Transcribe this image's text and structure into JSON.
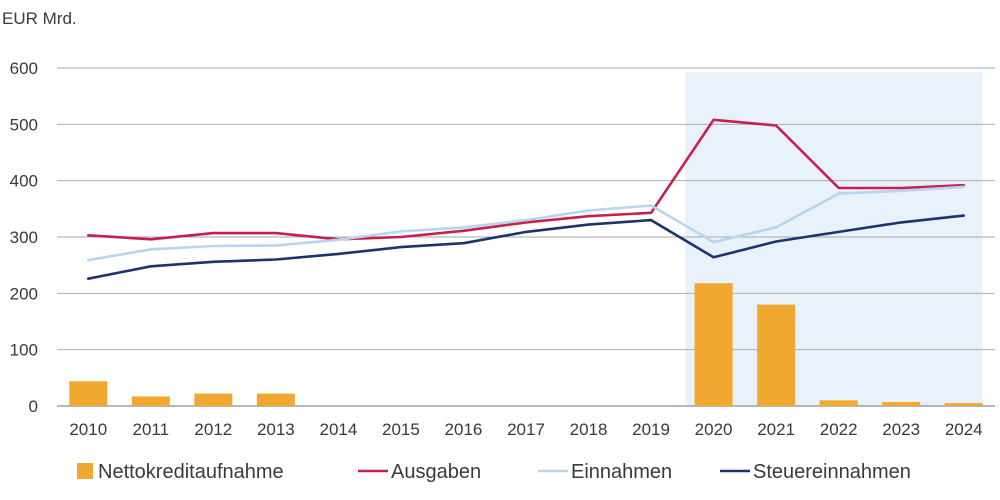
{
  "chart_data": {
    "type": "bar+line",
    "unit_label": "EUR Mrd.",
    "categories": [
      "2010",
      "2011",
      "2012",
      "2013",
      "2014",
      "2015",
      "2016",
      "2017",
      "2018",
      "2019",
      "2020",
      "2021",
      "2022",
      "2023",
      "2024"
    ],
    "ylim": [
      0,
      600
    ],
    "yticks": [
      0,
      100,
      200,
      300,
      400,
      500,
      600
    ],
    "grid": true,
    "legend_position": "bottom",
    "highlight_range": [
      "2020",
      "2024"
    ],
    "highlight_color": "#e9f2fa",
    "bars": {
      "name": "Nettokreditaufnahme",
      "color": "#f0a830",
      "values": [
        44,
        17,
        22,
        22,
        0,
        0,
        0,
        0,
        0,
        0,
        218,
        180,
        10,
        7,
        5
      ]
    },
    "series": [
      {
        "name": "Ausgaben",
        "color": "#c8204e",
        "values": [
          303,
          296,
          307,
          307,
          296,
          300,
          311,
          326,
          337,
          343,
          508,
          498,
          387,
          387,
          392
        ]
      },
      {
        "name": "Einnahmen",
        "color": "#b8d4ee",
        "values": [
          259,
          278,
          284,
          285,
          295,
          310,
          317,
          330,
          347,
          356,
          291,
          317,
          377,
          382,
          389
        ]
      },
      {
        "name": "Steuereinnahmen",
        "color": "#1f3270",
        "values": [
          226,
          248,
          256,
          260,
          270,
          282,
          289,
          309,
          322,
          330,
          264,
          292,
          309,
          326,
          338
        ]
      }
    ]
  }
}
